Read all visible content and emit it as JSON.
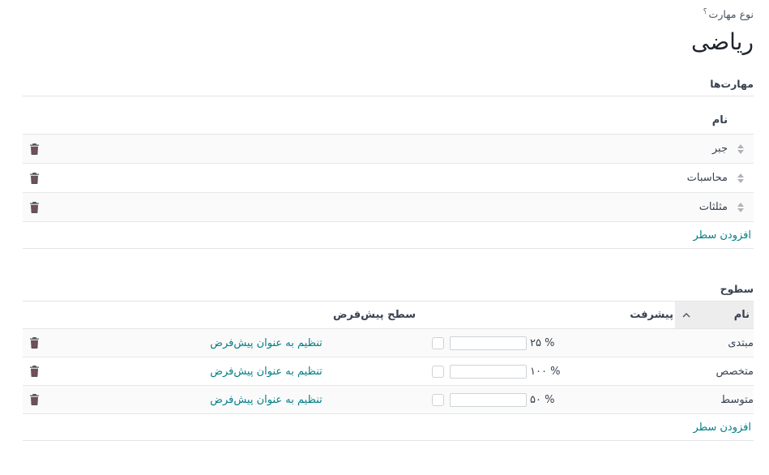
{
  "accent_color": "#017e84",
  "header": {
    "field_label": "نوع مهارت",
    "help_mark": "؟",
    "title": "ریاضی"
  },
  "skills_section": {
    "label": "مهارت‌ها",
    "name_header": "نام",
    "rows": [
      {
        "name": "جبر"
      },
      {
        "name": "محاسبات"
      },
      {
        "name": "مثلثات"
      }
    ],
    "add_row_label": "افزودن سطر"
  },
  "levels_section": {
    "label": "سطوح",
    "headers": {
      "name": "نام",
      "progress": "پیشرفت",
      "default_level": "سطح پیش‌فرض"
    },
    "rows": [
      {
        "name": "مبتدی",
        "progress_display": "۲۵ %",
        "progress_value": 25,
        "default_checked": false,
        "set_default_label": "تنظیم به عنوان پیش‌فرض"
      },
      {
        "name": "متخصص",
        "progress_display": "۱۰۰ %",
        "progress_value": 100,
        "default_checked": false,
        "set_default_label": "تنظیم به عنوان پیش‌فرض"
      },
      {
        "name": "متوسط",
        "progress_display": "۵۰ %",
        "progress_value": 50,
        "default_checked": false,
        "set_default_label": "تنظیم به عنوان پیش‌فرض"
      }
    ],
    "add_row_label": "افزودن سطر"
  }
}
